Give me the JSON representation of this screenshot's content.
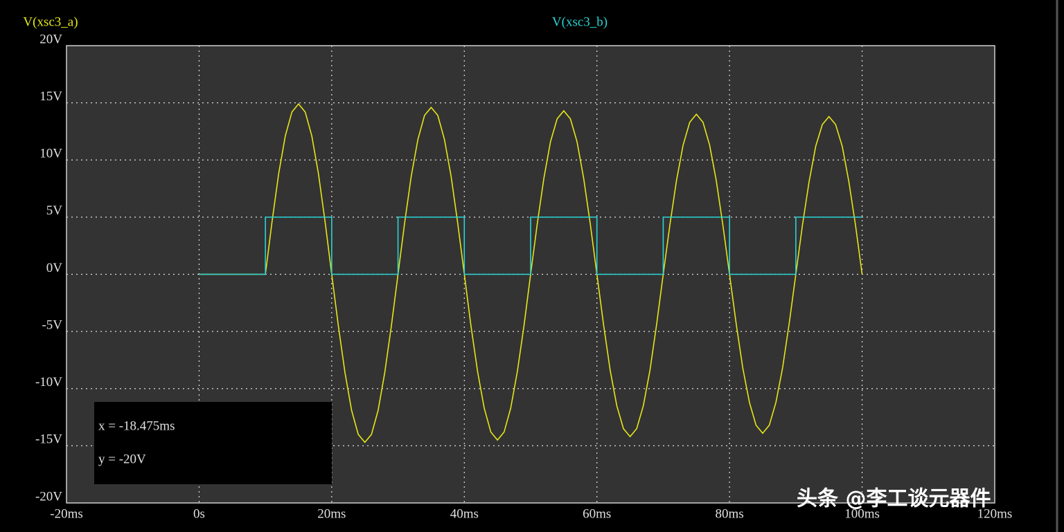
{
  "chart_data": {
    "type": "line",
    "xlim": [
      -20,
      120
    ],
    "ylim": [
      -20,
      20
    ],
    "xticks": [
      {
        "value": -20,
        "label": "-20ms"
      },
      {
        "value": 0,
        "label": "0s"
      },
      {
        "value": 20,
        "label": "20ms"
      },
      {
        "value": 40,
        "label": "40ms"
      },
      {
        "value": 60,
        "label": "60ms"
      },
      {
        "value": 80,
        "label": "80ms"
      },
      {
        "value": 100,
        "label": "100ms"
      },
      {
        "value": 120,
        "label": "120ms"
      }
    ],
    "yticks": [
      {
        "value": 20,
        "label": "20V"
      },
      {
        "value": 15,
        "label": "15V"
      },
      {
        "value": 10,
        "label": "10V"
      },
      {
        "value": 5,
        "label": "5V"
      },
      {
        "value": 0,
        "label": "0V"
      },
      {
        "value": -5,
        "label": "-5V"
      },
      {
        "value": -10,
        "label": "-10V"
      },
      {
        "value": -15,
        "label": "-15V"
      },
      {
        "value": -20,
        "label": "-20V"
      }
    ],
    "grid": true,
    "series": [
      {
        "name": "V(xsc3_a)",
        "color": "#e6e619",
        "x": [
          0,
          1,
          2,
          3,
          4,
          5,
          6,
          7,
          8,
          9,
          10,
          11,
          12,
          13,
          14,
          15,
          16,
          17,
          18,
          19,
          20,
          21,
          22,
          23,
          24,
          25,
          26,
          27,
          28,
          29,
          30,
          31,
          32,
          33,
          34,
          35,
          36,
          37,
          38,
          39,
          40,
          41,
          42,
          43,
          44,
          45,
          46,
          47,
          48,
          49,
          50,
          51,
          52,
          53,
          54,
          55,
          56,
          57,
          58,
          59,
          60,
          61,
          62,
          63,
          64,
          65,
          66,
          67,
          68,
          69,
          70,
          71,
          72,
          73,
          74,
          75,
          76,
          77,
          78,
          79,
          80,
          81,
          82,
          83,
          84,
          85,
          86,
          87,
          88,
          89,
          90,
          91,
          92,
          93,
          94,
          95,
          96,
          97,
          98,
          99,
          100
        ],
        "values": [
          0,
          0,
          0,
          0,
          0,
          0,
          0,
          0,
          0,
          0,
          0,
          4.6,
          8.8,
          12.1,
          14.2,
          14.9,
          14.2,
          12.1,
          8.8,
          4.6,
          0,
          -4.5,
          -8.6,
          -11.9,
          -14.0,
          -14.7,
          -14.0,
          -11.9,
          -8.6,
          -4.5,
          0,
          4.5,
          8.6,
          11.8,
          13.9,
          14.6,
          13.9,
          11.8,
          8.6,
          4.5,
          0,
          -4.5,
          -8.5,
          -11.7,
          -13.8,
          -14.5,
          -13.8,
          -11.7,
          -8.5,
          -4.5,
          0,
          4.4,
          8.4,
          11.6,
          13.6,
          14.3,
          13.6,
          11.6,
          8.4,
          4.4,
          0,
          -4.4,
          -8.4,
          -11.5,
          -13.5,
          -14.2,
          -13.5,
          -11.5,
          -8.4,
          -4.4,
          0,
          4.3,
          8.2,
          11.3,
          13.3,
          14.0,
          13.3,
          11.3,
          8.2,
          4.3,
          0,
          -4.3,
          -8.2,
          -11.2,
          -13.2,
          -13.9,
          -13.2,
          -11.2,
          -8.2,
          -4.3,
          0,
          4.3,
          8.1,
          11.2,
          13.1,
          13.8,
          13.1,
          11.2,
          8.1,
          4.3,
          0
        ]
      },
      {
        "name": "V(xsc3_b)",
        "color": "#2ad4d4",
        "x": [
          0,
          10,
          10,
          20,
          20,
          30,
          30,
          40,
          40,
          50,
          50,
          60,
          60,
          70,
          70,
          80,
          80,
          90,
          90,
          100
        ],
        "values": [
          0,
          0,
          5,
          5,
          0,
          0,
          5,
          5,
          0,
          0,
          5,
          5,
          0,
          0,
          5,
          5,
          0,
          0,
          5,
          5
        ]
      }
    ],
    "cursor": {
      "x_text": "x = -18.475ms",
      "y_text": "y = -20V"
    },
    "watermark": "头条 @李工谈元器件"
  }
}
